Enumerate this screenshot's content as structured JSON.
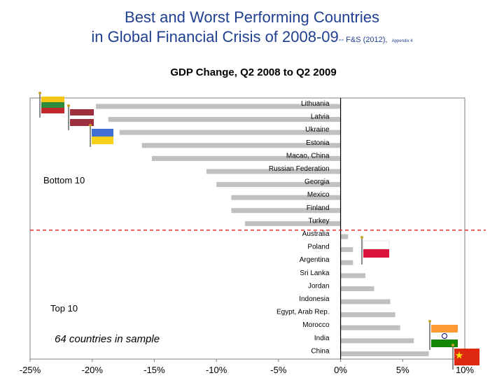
{
  "slide": {
    "title_line1": "Best and Worst Performing Countries",
    "title_line2": "in Global Financial Crisis of 2008-09",
    "citation": "-- F&S (2012),",
    "citation_small": "Appendix 4"
  },
  "chart_data": {
    "type": "bar",
    "orientation": "horizontal",
    "title": "GDP Change,  Q2 2008  to Q2  2009",
    "xlabel": "",
    "ylabel": "",
    "xlim": [
      -25,
      10
    ],
    "xticks": [
      -25,
      -20,
      -15,
      -10,
      -5,
      0,
      5,
      10
    ],
    "xtick_labels": [
      "-25%",
      "-20%",
      "-15%",
      "-10%",
      "-5%",
      "0%",
      "5%",
      "10%"
    ],
    "bar_color": "#c0c0c0",
    "categories": [
      "Lithuania",
      "Latvia",
      "Ukraine",
      "Estonia",
      "Macao, China",
      "Russian Federation",
      "Georgia",
      "Mexico",
      "Finland",
      "Turkey",
      "Australia",
      "Poland",
      "Argentina",
      "Sri Lanka",
      "Jordan",
      "Indonesia",
      "Egypt, Arab Rep.",
      "Morocco",
      "India",
      "China"
    ],
    "values": [
      -19.7,
      -18.7,
      -17.8,
      -16.0,
      -15.2,
      -10.8,
      -10.0,
      -8.8,
      -8.8,
      -7.7,
      0.6,
      1.0,
      1.0,
      2.0,
      2.7,
      4.0,
      4.4,
      4.8,
      5.9,
      7.1
    ],
    "annotations": {
      "bottom": "Bottom 10",
      "top": "Top 10",
      "sample": "64 countries in sample"
    },
    "divider_color": "#e03030"
  }
}
